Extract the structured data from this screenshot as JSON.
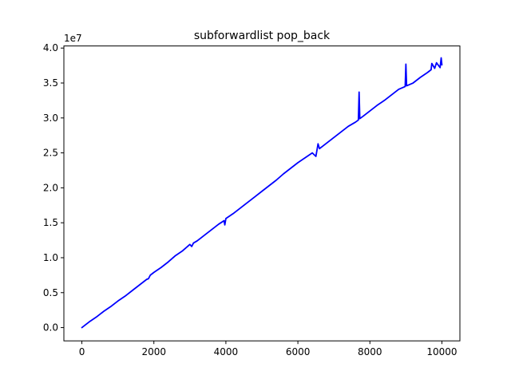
{
  "chart_data": {
    "type": "line",
    "title": "subforwardlist pop_back",
    "xlabel": "",
    "ylabel": "",
    "y_offset_label": "1e7",
    "xlim": [
      -500,
      10500
    ],
    "ylim": [
      -1900000,
      40300000
    ],
    "x_ticks": [
      0,
      2000,
      4000,
      6000,
      8000,
      10000
    ],
    "x_tick_labels": [
      "0",
      "2000",
      "4000",
      "6000",
      "8000",
      "10000"
    ],
    "y_ticks": [
      0,
      5000000,
      10000000,
      15000000,
      20000000,
      25000000,
      30000000,
      35000000,
      40000000
    ],
    "y_tick_labels": [
      "0.0",
      "0.5",
      "1.0",
      "1.5",
      "2.0",
      "2.5",
      "3.0",
      "3.5",
      "4.0"
    ],
    "grid": false,
    "legend": "none",
    "series": [
      {
        "color": "#0000ff",
        "x": [
          0,
          100,
          200,
          400,
          600,
          800,
          1000,
          1200,
          1400,
          1600,
          1800,
          1850,
          1900,
          2000,
          2200,
          2400,
          2600,
          2800,
          3000,
          3050,
          3100,
          3200,
          3400,
          3600,
          3800,
          3950,
          3970,
          4000,
          4200,
          4400,
          4600,
          4800,
          5000,
          5200,
          5400,
          5600,
          5800,
          6000,
          6200,
          6400,
          6500,
          6560,
          6600,
          6800,
          7000,
          7200,
          7400,
          7600,
          7680,
          7700,
          7720,
          7800,
          8000,
          8200,
          8400,
          8600,
          8800,
          8980,
          9000,
          9020,
          9200,
          9400,
          9600,
          9700,
          9720,
          9800,
          9850,
          9950,
          9980,
          10000
        ],
        "y": [
          0,
          400000,
          800000,
          1500000,
          2300000,
          3000000,
          3800000,
          4500000,
          5300000,
          6100000,
          6900000,
          7000000,
          7500000,
          7900000,
          8600000,
          9400000,
          10300000,
          11000000,
          11900000,
          11600000,
          12100000,
          12400000,
          13200000,
          14000000,
          14800000,
          15300000,
          14700000,
          15600000,
          16300000,
          17100000,
          17900000,
          18700000,
          19500000,
          20300000,
          21100000,
          22000000,
          22800000,
          23600000,
          24300000,
          25000000,
          24500000,
          26300000,
          25600000,
          26400000,
          27200000,
          28000000,
          28800000,
          29400000,
          29700000,
          33700000,
          29900000,
          30200000,
          31000000,
          31800000,
          32500000,
          33300000,
          34100000,
          34500000,
          37700000,
          34600000,
          35000000,
          35800000,
          36500000,
          36900000,
          37800000,
          37100000,
          37900000,
          37200000,
          38600000,
          37600000
        ]
      }
    ]
  }
}
